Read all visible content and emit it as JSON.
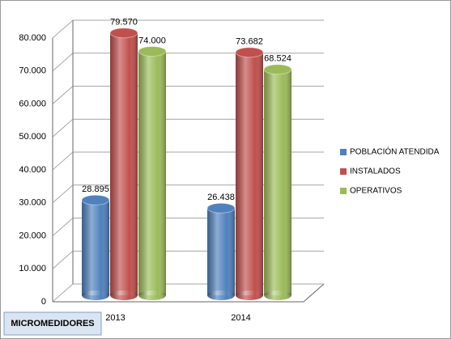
{
  "chart_data": {
    "type": "bar",
    "caption": "MICROMEDIDORES",
    "categories": [
      "2013",
      "2014"
    ],
    "series": [
      {
        "name": "POBLACIÓN ATENDIDA",
        "color": "#4f81bd",
        "values": [
          28895,
          26438
        ],
        "value_labels": [
          "28.895",
          "26.438"
        ]
      },
      {
        "name": "INSTALADOS",
        "color": "#c0504d",
        "values": [
          79570,
          73682
        ],
        "value_labels": [
          "79.570",
          "73.682"
        ]
      },
      {
        "name": "OPERATIVOS",
        "color": "#9bbb59",
        "values": [
          74000,
          68524
        ],
        "value_labels": [
          "74.000",
          "68.524"
        ]
      }
    ],
    "ylim": [
      0,
      80000
    ],
    "yticks": [
      0,
      {
        "value": 10000,
        "label": "10.000"
      },
      {
        "value": 20000,
        "label": "20.000"
      },
      {
        "value": 30000,
        "label": "30.000"
      },
      {
        "value": 40000,
        "label": "40.000"
      },
      {
        "value": 50000,
        "label": "50.000"
      },
      {
        "value": 60000,
        "label": "60.000"
      },
      {
        "value": 70000,
        "label": "70.000"
      },
      {
        "value": 80000,
        "label": "80.000"
      }
    ],
    "grid": true,
    "legend": "right"
  }
}
